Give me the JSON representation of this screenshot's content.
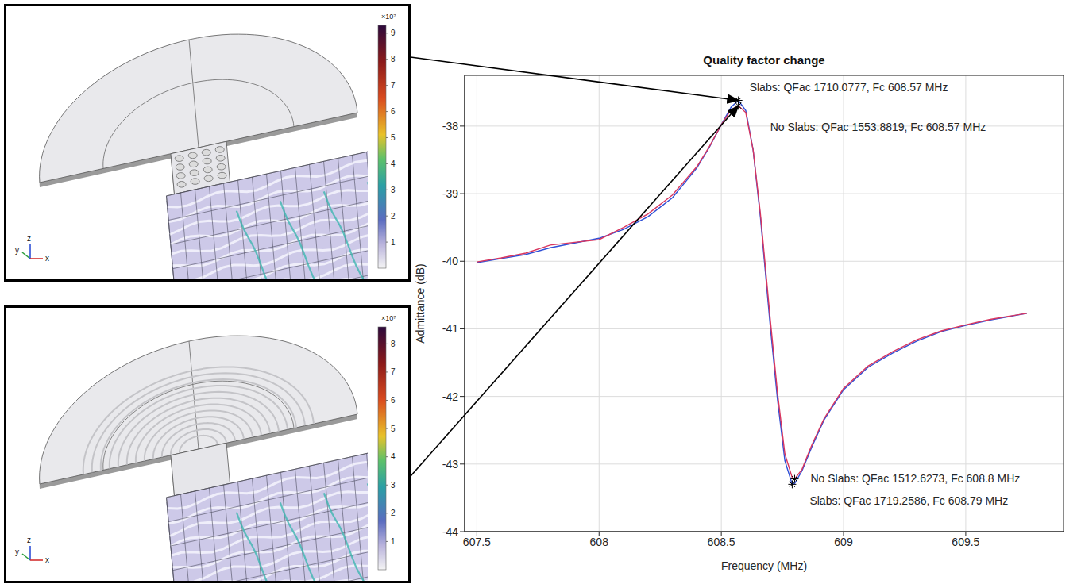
{
  "panels": [
    {
      "scale_label": "×10⁷",
      "colorbar_range": [
        0,
        9.3
      ],
      "colorbar_ticks": [
        1,
        2,
        3,
        4,
        5,
        6,
        7,
        8,
        9
      ],
      "axis_labels": [
        "y",
        "z",
        "x"
      ]
    },
    {
      "scale_label": "×10⁷",
      "colorbar_range": [
        0,
        8.6
      ],
      "colorbar_ticks": [
        1,
        2,
        3,
        4,
        5,
        6,
        7,
        8
      ],
      "axis_labels": [
        "y",
        "z",
        "x"
      ]
    }
  ],
  "chart_data": {
    "type": "line",
    "title": "Quality factor change",
    "x_label": "Frequency (MHz)",
    "y_label": "Admittance (dB)",
    "x": [
      607.5,
      607.6,
      607.7,
      607.8,
      607.9,
      608.0,
      608.1,
      608.2,
      608.3,
      608.4,
      608.45,
      608.5,
      608.54,
      608.57,
      608.6,
      608.63,
      608.66,
      608.7,
      608.73,
      608.76,
      608.79,
      608.8,
      608.83,
      608.87,
      608.92,
      609.0,
      609.1,
      609.2,
      609.3,
      609.4,
      609.5,
      609.6,
      609.75
    ],
    "series": [
      {
        "name": "Slabs",
        "color": "#2f4fd6",
        "values": [
          -40.02,
          -39.96,
          -39.9,
          -39.8,
          -39.73,
          -39.66,
          -39.53,
          -39.34,
          -39.06,
          -38.62,
          -38.32,
          -37.98,
          -37.72,
          -37.62,
          -37.77,
          -38.35,
          -39.35,
          -40.95,
          -42.05,
          -42.95,
          -43.3,
          -43.29,
          -43.1,
          -42.75,
          -42.35,
          -41.9,
          -41.57,
          -41.36,
          -41.18,
          -41.04,
          -40.95,
          -40.87,
          -40.77
        ]
      },
      {
        "name": "No Slabs",
        "color": "#d9365f",
        "values": [
          -40.01,
          -39.95,
          -39.88,
          -39.76,
          -39.72,
          -39.68,
          -39.5,
          -39.3,
          -39.02,
          -38.6,
          -38.31,
          -37.98,
          -37.76,
          -37.7,
          -37.8,
          -38.35,
          -39.3,
          -40.85,
          -41.95,
          -42.85,
          -43.2,
          -43.22,
          -43.08,
          -42.72,
          -42.33,
          -41.88,
          -41.55,
          -41.34,
          -41.16,
          -41.03,
          -40.94,
          -40.86,
          -40.77
        ]
      }
    ],
    "xlim": [
      607.45,
      609.9
    ],
    "xticks": [
      607.5,
      608,
      608.5,
      609,
      609.5
    ],
    "ylim": [
      -44,
      -37.25
    ],
    "yticks": [
      -44,
      -43,
      -42,
      -41,
      -40,
      -39,
      -38
    ],
    "grid": true,
    "annotations": [
      {
        "text": "Slabs: QFac 1710.0777, Fc 608.57 MHz",
        "x": 608.57,
        "y": -37.62
      },
      {
        "text": "No Slabs: QFac 1553.8819, Fc 608.57 MHz",
        "x": 608.57,
        "y": -37.7
      },
      {
        "text": "No Slabs: QFac 1512.6273, Fc 608.8 MHz",
        "x": 608.8,
        "y": -43.22
      },
      {
        "text": "Slabs: QFac 1719.2586, Fc 608.79 MHz",
        "x": 608.79,
        "y": -43.3
      }
    ]
  }
}
